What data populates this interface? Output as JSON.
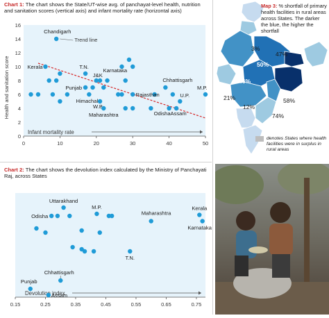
{
  "chart1": {
    "caption_label": "Chart 1:",
    "caption_text": "The chart shows the State/UT-wise avg. of panchayat-level health, nutrition and sanitation scores (vertical axis) and infant mortality rate (horizontal axis)",
    "trend_label": "Trend line",
    "colors": {
      "point": "#1f9bd7",
      "trend": "#d62728",
      "plot_bg": "#e6f3fb"
    }
  },
  "chart2": {
    "caption_label": "Chart 2:",
    "caption_text": "The chart shows the devolution index calculated by the Ministry of Panchayati Raj, across States",
    "colors": {
      "point": "#1f9bd7",
      "plot_bg": "#e6f3fb"
    }
  },
  "map3": {
    "caption_label": "Map 3:",
    "caption_text": "% shortfall of primary health facilities in rural areas across States. The darker the blue, the higher the shortfall",
    "values": [
      {
        "label": "3%"
      },
      {
        "label": "47%"
      },
      {
        "label": "50%"
      },
      {
        "label": "46%"
      },
      {
        "label": "21%"
      },
      {
        "label": "12%"
      },
      {
        "label": "58%"
      },
      {
        "label": "74%"
      }
    ],
    "legend_text": "denotes States where health facilities were in surplus in rural areas",
    "colors": {
      "lightest": "#c6dbef",
      "light": "#9ecae1",
      "mid": "#4292c6",
      "dark": "#2171b5",
      "darkest": "#08306b",
      "surplus": "#bdbdbd",
      "panel_bg": "#ffffff"
    }
  },
  "photo": {
    "description_icon": "children-eating-photo"
  },
  "chart_data": [
    {
      "type": "scatter",
      "title": "",
      "xlabel": "Infant mortality rate",
      "ylabel": "Health and sanitation score",
      "xlim": [
        0,
        50
      ],
      "ylim": [
        0,
        16
      ],
      "xticks": [
        0,
        10,
        20,
        30,
        40,
        50
      ],
      "yticks": [
        0,
        2,
        4,
        6,
        8,
        10,
        12,
        14,
        16
      ],
      "trend": {
        "x": [
          4,
          50
        ],
        "y": [
          10.5,
          2.6
        ]
      },
      "points": [
        {
          "x": 9,
          "y": 14,
          "label": "Chandigarh"
        },
        {
          "x": 6,
          "y": 10,
          "label": "Kerala"
        },
        {
          "x": 2,
          "y": 6,
          "label": ""
        },
        {
          "x": 4,
          "y": 6,
          "label": ""
        },
        {
          "x": 7,
          "y": 8,
          "label": ""
        },
        {
          "x": 9,
          "y": 8,
          "label": ""
        },
        {
          "x": 10,
          "y": 9,
          "label": ""
        },
        {
          "x": 10,
          "y": 5,
          "label": ""
        },
        {
          "x": 8,
          "y": 6,
          "label": ""
        },
        {
          "x": 12,
          "y": 6,
          "label": ""
        },
        {
          "x": 17,
          "y": 9,
          "label": "T.N."
        },
        {
          "x": 17,
          "y": 7,
          "label": "Punjab"
        },
        {
          "x": 18,
          "y": 6,
          "label": "Himachal"
        },
        {
          "x": 19,
          "y": 7,
          "label": ""
        },
        {
          "x": 20,
          "y": 8,
          "label": "J&K"
        },
        {
          "x": 21,
          "y": 8,
          "label": ""
        },
        {
          "x": 22,
          "y": 7,
          "label": ""
        },
        {
          "x": 21,
          "y": 5,
          "label": "W.B."
        },
        {
          "x": 22,
          "y": 4,
          "label": "Maharashtra"
        },
        {
          "x": 23,
          "y": 8,
          "label": "Karnataka"
        },
        {
          "x": 26,
          "y": 6,
          "label": ""
        },
        {
          "x": 27,
          "y": 10,
          "label": ""
        },
        {
          "x": 27,
          "y": 6,
          "label": ""
        },
        {
          "x": 28,
          "y": 4,
          "label": ""
        },
        {
          "x": 28,
          "y": 8,
          "label": ""
        },
        {
          "x": 29,
          "y": 11,
          "label": ""
        },
        {
          "x": 30,
          "y": 10,
          "label": ""
        },
        {
          "x": 30,
          "y": 6,
          "label": ""
        },
        {
          "x": 30,
          "y": 4,
          "label": ""
        },
        {
          "x": 35,
          "y": 4,
          "label": ""
        },
        {
          "x": 36,
          "y": 6,
          "label": "Rajasthan"
        },
        {
          "x": 39,
          "y": 7,
          "label": "Chhattisgarh"
        },
        {
          "x": 40,
          "y": 4,
          "label": "Odisha"
        },
        {
          "x": 41,
          "y": 6,
          "label": ""
        },
        {
          "x": 42,
          "y": 4,
          "label": "Assam"
        },
        {
          "x": 43,
          "y": 5,
          "label": "U.P."
        },
        {
          "x": 50,
          "y": 6,
          "label": "M.P."
        }
      ]
    },
    {
      "type": "scatter",
      "title": "",
      "xlabel": "Devolution index",
      "ylabel": "",
      "xlim": [
        0.15,
        0.78
      ],
      "xticks": [
        0.15,
        0.25,
        0.35,
        0.45,
        0.55,
        0.65,
        0.75
      ],
      "points": [
        {
          "x": 0.31,
          "y": 0.86,
          "label": "Uttarakhand"
        },
        {
          "x": 0.27,
          "y": 0.78,
          "label": "Odisha"
        },
        {
          "x": 0.29,
          "y": 0.78,
          "label": ""
        },
        {
          "x": 0.33,
          "y": 0.78,
          "label": ""
        },
        {
          "x": 0.42,
          "y": 0.8,
          "label": "M.P."
        },
        {
          "x": 0.46,
          "y": 0.78,
          "label": ""
        },
        {
          "x": 0.47,
          "y": 0.78,
          "label": ""
        },
        {
          "x": 0.6,
          "y": 0.73,
          "label": "Maharashtra"
        },
        {
          "x": 0.76,
          "y": 0.79,
          "label": "Kerala"
        },
        {
          "x": 0.77,
          "y": 0.73,
          "label": "Karnataka"
        },
        {
          "x": 0.22,
          "y": 0.66,
          "label": ""
        },
        {
          "x": 0.25,
          "y": 0.62,
          "label": ""
        },
        {
          "x": 0.37,
          "y": 0.64,
          "label": ""
        },
        {
          "x": 0.43,
          "y": 0.62,
          "label": ""
        },
        {
          "x": 0.34,
          "y": 0.48,
          "label": ""
        },
        {
          "x": 0.37,
          "y": 0.46,
          "label": ""
        },
        {
          "x": 0.38,
          "y": 0.44,
          "label": ""
        },
        {
          "x": 0.41,
          "y": 0.44,
          "label": ""
        },
        {
          "x": 0.53,
          "y": 0.44,
          "label": "T.N."
        },
        {
          "x": 0.3,
          "y": 0.16,
          "label": "Chhattisgarh"
        },
        {
          "x": 0.2,
          "y": 0.08,
          "label": "Punjab"
        },
        {
          "x": 0.26,
          "y": 0.02,
          "label": "Assam"
        }
      ]
    }
  ]
}
